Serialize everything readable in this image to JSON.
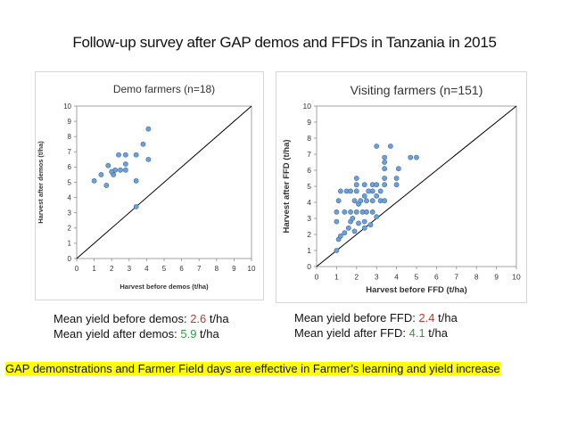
{
  "slide": {
    "title": "Follow-up survey after GAP demos and FFDs in Tanzania in 2015"
  },
  "stats": {
    "demo": {
      "before_label": "Mean yield before demos: ",
      "before_value": "2.6",
      "after_label": "Mean yield after demos: ",
      "after_value": "5.9",
      "unit": " t/ha"
    },
    "visit": {
      "before_label": "Mean yield before FFD: ",
      "before_value": "2.4",
      "after_label": "Mean yield after FFD: ",
      "after_value": "4.1",
      "unit": " t/ha"
    }
  },
  "conclusion": "GAP demonstrations and Farmer Field days are effective in Farmer’s learning and yield increase",
  "colors": {
    "point_fill": "#6f9fd8",
    "point_stroke": "#3f6fa8",
    "before_value": "#c0392b",
    "after_value": "#2e9e3f",
    "highlight": "#ffff00"
  },
  "chart_data": [
    {
      "type": "scatter",
      "title": "Demo farmers (n=18)",
      "xlabel": "Harvest before demos (t/ha)",
      "ylabel": "Harvest after demos (t/ha)",
      "xlim": [
        0,
        10
      ],
      "ylim": [
        0,
        10
      ],
      "xticks": [
        "0",
        "1",
        "2",
        "3",
        "4",
        "5",
        "6",
        "7",
        "8",
        "9",
        "10"
      ],
      "yticks": [
        "0",
        "1",
        "2",
        "3",
        "4",
        "5",
        "6",
        "7",
        "8",
        "9",
        "10"
      ],
      "reference_line": "y = x",
      "grid": false,
      "points": [
        {
          "x": 1.0,
          "y": 5.1
        },
        {
          "x": 1.4,
          "y": 5.5
        },
        {
          "x": 1.7,
          "y": 4.8
        },
        {
          "x": 1.8,
          "y": 6.1
        },
        {
          "x": 2.1,
          "y": 5.5
        },
        {
          "x": 2.2,
          "y": 5.8
        },
        {
          "x": 2.4,
          "y": 6.8
        },
        {
          "x": 2.5,
          "y": 5.8
        },
        {
          "x": 2.8,
          "y": 5.8
        },
        {
          "x": 2.8,
          "y": 6.2
        },
        {
          "x": 2.8,
          "y": 6.8
        },
        {
          "x": 3.4,
          "y": 3.4
        },
        {
          "x": 3.4,
          "y": 5.1
        },
        {
          "x": 3.4,
          "y": 6.8
        },
        {
          "x": 3.8,
          "y": 7.5
        },
        {
          "x": 4.1,
          "y": 8.5
        },
        {
          "x": 4.1,
          "y": 6.5
        },
        {
          "x": 2.0,
          "y": 5.7
        }
      ]
    },
    {
      "type": "scatter",
      "title": "Visiting farmers (n=151)",
      "xlabel": "Harvest before FFD (t/ha)",
      "ylabel": "Harvest after FFD (t/ha)",
      "xlim": [
        0,
        10
      ],
      "ylim": [
        0,
        10
      ],
      "xticks": [
        "0",
        "1",
        "2",
        "3",
        "4",
        "5",
        "6",
        "7",
        "8",
        "9",
        "10"
      ],
      "yticks": [
        "0",
        "1",
        "2",
        "3",
        "4",
        "5",
        "6",
        "7",
        "8",
        "9",
        "10"
      ],
      "reference_line": "y = x",
      "grid": false,
      "points": [
        {
          "x": 1.0,
          "y": 1.0
        },
        {
          "x": 1.1,
          "y": 1.7
        },
        {
          "x": 1.2,
          "y": 1.9
        },
        {
          "x": 1.0,
          "y": 2.8
        },
        {
          "x": 1.0,
          "y": 3.4
        },
        {
          "x": 1.1,
          "y": 4.1
        },
        {
          "x": 1.2,
          "y": 4.7
        },
        {
          "x": 1.4,
          "y": 2.1
        },
        {
          "x": 1.4,
          "y": 3.4
        },
        {
          "x": 1.5,
          "y": 4.7
        },
        {
          "x": 1.6,
          "y": 2.4
        },
        {
          "x": 1.7,
          "y": 2.8
        },
        {
          "x": 1.7,
          "y": 3.4
        },
        {
          "x": 1.7,
          "y": 4.7
        },
        {
          "x": 1.8,
          "y": 3.0
        },
        {
          "x": 1.9,
          "y": 2.2
        },
        {
          "x": 1.9,
          "y": 4.1
        },
        {
          "x": 2.0,
          "y": 3.4
        },
        {
          "x": 2.0,
          "y": 4.7
        },
        {
          "x": 2.0,
          "y": 5.1
        },
        {
          "x": 2.0,
          "y": 5.5
        },
        {
          "x": 2.1,
          "y": 2.7
        },
        {
          "x": 2.1,
          "y": 3.9
        },
        {
          "x": 2.2,
          "y": 4.1
        },
        {
          "x": 2.3,
          "y": 3.4
        },
        {
          "x": 2.4,
          "y": 2.4
        },
        {
          "x": 2.4,
          "y": 2.8
        },
        {
          "x": 2.4,
          "y": 4.4
        },
        {
          "x": 2.4,
          "y": 5.1
        },
        {
          "x": 2.5,
          "y": 3.4
        },
        {
          "x": 2.5,
          "y": 4.1
        },
        {
          "x": 2.6,
          "y": 4.7
        },
        {
          "x": 2.7,
          "y": 2.6
        },
        {
          "x": 2.8,
          "y": 3.4
        },
        {
          "x": 2.8,
          "y": 4.1
        },
        {
          "x": 2.8,
          "y": 4.7
        },
        {
          "x": 2.8,
          "y": 5.1
        },
        {
          "x": 3.0,
          "y": 3.1
        },
        {
          "x": 3.0,
          "y": 4.4
        },
        {
          "x": 3.0,
          "y": 5.1
        },
        {
          "x": 3.0,
          "y": 7.5
        },
        {
          "x": 3.2,
          "y": 4.1
        },
        {
          "x": 3.2,
          "y": 4.7
        },
        {
          "x": 3.4,
          "y": 4.1
        },
        {
          "x": 3.4,
          "y": 5.1
        },
        {
          "x": 3.4,
          "y": 5.5
        },
        {
          "x": 3.4,
          "y": 6.1
        },
        {
          "x": 3.4,
          "y": 6.5
        },
        {
          "x": 3.4,
          "y": 6.8
        },
        {
          "x": 3.7,
          "y": 7.5
        },
        {
          "x": 4.0,
          "y": 5.1
        },
        {
          "x": 4.0,
          "y": 5.5
        },
        {
          "x": 4.1,
          "y": 6.1
        },
        {
          "x": 4.7,
          "y": 6.8
        },
        {
          "x": 5.0,
          "y": 6.8
        }
      ]
    }
  ]
}
